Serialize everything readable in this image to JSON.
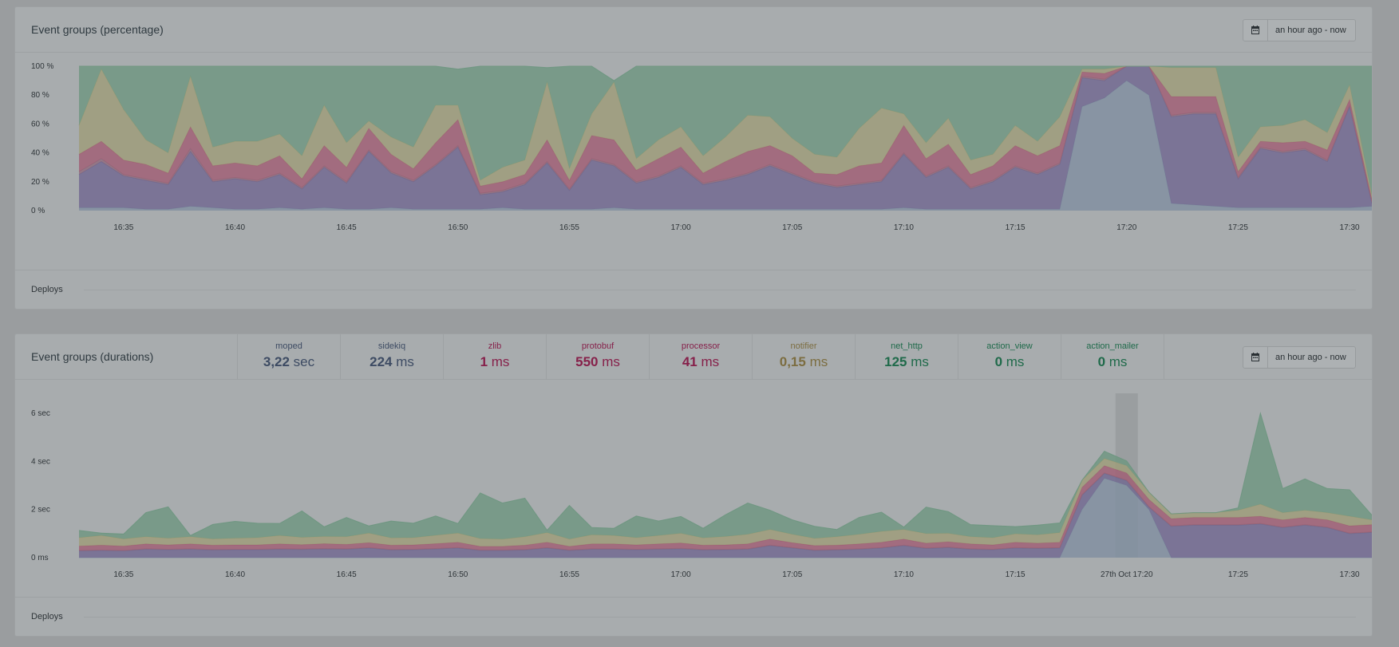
{
  "panels": {
    "percentage": {
      "title": "Event groups (percentage)",
      "date_range": "an hour ago - now",
      "deploys_label": "Deploys"
    },
    "durations": {
      "title": "Event groups (durations)",
      "date_range": "an hour ago - now",
      "deploys_label": "Deploys",
      "hover_label": "27th Oct 17:20"
    }
  },
  "icons": {
    "calendar": "calendar-icon"
  },
  "colors": {
    "moped": "#7f8fa0",
    "sidekiq": "#6f6790",
    "zlib": "#8f6a7c",
    "protobuf": "#a05d73",
    "processor": "#a37080",
    "notifier": "#9e9c78",
    "net_http": "#6d9680",
    "action_view": "#6f9a86",
    "action_mailer": "#5f8d7e"
  },
  "legend": [
    {
      "name": "moped",
      "value": "3,22",
      "unit": "sec",
      "color": "#3d4b63"
    },
    {
      "name": "sidekiq",
      "value": "224",
      "unit": "ms",
      "color": "#3d4b63"
    },
    {
      "name": "zlib",
      "value": "1",
      "unit": "ms",
      "color": "#86204a"
    },
    {
      "name": "protobuf",
      "value": "550",
      "unit": "ms",
      "color": "#86204a"
    },
    {
      "name": "processor",
      "value": "41",
      "unit": "ms",
      "color": "#86204a"
    },
    {
      "name": "notifier",
      "value": "0,15",
      "unit": "ms",
      "color": "#7c6d40"
    },
    {
      "name": "net_http",
      "value": "125",
      "unit": "ms",
      "color": "#1f6a4a"
    },
    {
      "name": "action_view",
      "value": "0",
      "unit": "ms",
      "color": "#1f6a4a"
    },
    {
      "name": "action_mailer",
      "value": "0",
      "unit": "ms",
      "color": "#1f6a4a"
    }
  ],
  "chart_data": [
    {
      "type": "area",
      "title": "Event groups (percentage)",
      "x_start": "16:33",
      "x_step_minutes": 1,
      "xticks": [
        "16:35",
        "16:40",
        "16:45",
        "16:50",
        "16:55",
        "17:00",
        "17:05",
        "17:10",
        "17:15",
        "17:20",
        "17:25",
        "17:30"
      ],
      "yticks": [
        "0 %",
        "20 %",
        "40 %",
        "60 %",
        "80 %",
        "100 %"
      ],
      "ylim": [
        0,
        100
      ],
      "stacked": true,
      "series": [
        {
          "name": "moped",
          "values": [
            2,
            2,
            2,
            1,
            1,
            3,
            2,
            1,
            1,
            2,
            1,
            2,
            1,
            1,
            2,
            1,
            1,
            1,
            1,
            2,
            1,
            1,
            1,
            1,
            2,
            1,
            1,
            1,
            1,
            1,
            1,
            1,
            1,
            1,
            1,
            1,
            1,
            2,
            1,
            1,
            1,
            1,
            1,
            1,
            1,
            72,
            78,
            90,
            80,
            5,
            4,
            3,
            2,
            2,
            2,
            2,
            2,
            2,
            3
          ]
        },
        {
          "name": "sidekiq",
          "values": [
            23,
            32,
            22,
            20,
            17,
            38,
            18,
            21,
            19,
            23,
            14,
            28,
            18,
            40,
            24,
            19,
            30,
            43,
            10,
            11,
            17,
            32,
            13,
            34,
            29,
            18,
            22,
            29,
            17,
            20,
            24,
            30,
            24,
            18,
            15,
            17,
            19,
            37,
            22,
            29,
            14,
            19,
            29,
            24,
            31,
            20,
            12,
            10,
            20,
            60,
            63,
            64,
            20,
            41,
            38,
            40,
            32,
            70,
            2
          ]
        },
        {
          "name": "zlib",
          "values": [
            2,
            2,
            1,
            1,
            1,
            2,
            1,
            1,
            1,
            1,
            1,
            1,
            1,
            1,
            1,
            1,
            1,
            1,
            1,
            1,
            1,
            1,
            1,
            1,
            1,
            1,
            1,
            1,
            1,
            1,
            1,
            1,
            1,
            1,
            1,
            1,
            1,
            1,
            1,
            1,
            1,
            1,
            1,
            1,
            1,
            1,
            1,
            0,
            0,
            1,
            1,
            1,
            1,
            1,
            1,
            1,
            1,
            1,
            1
          ]
        },
        {
          "name": "protobuf",
          "values": [
            12,
            12,
            10,
            10,
            7,
            15,
            10,
            10,
            10,
            12,
            6,
            14,
            10,
            15,
            12,
            8,
            15,
            18,
            5,
            6,
            6,
            15,
            6,
            16,
            17,
            8,
            12,
            13,
            7,
            12,
            15,
            13,
            12,
            6,
            8,
            12,
            12,
            19,
            12,
            15,
            9,
            10,
            14,
            12,
            12,
            3,
            4,
            0,
            0,
            13,
            11,
            11,
            4,
            4,
            6,
            5,
            7,
            4,
            2
          ]
        },
        {
          "name": "notifier",
          "values": [
            20,
            50,
            35,
            17,
            14,
            35,
            13,
            15,
            17,
            15,
            16,
            28,
            17,
            5,
            12,
            15,
            26,
            10,
            4,
            10,
            10,
            40,
            8,
            15,
            40,
            8,
            13,
            14,
            12,
            17,
            25,
            20,
            12,
            13,
            12,
            26,
            38,
            8,
            11,
            18,
            10,
            8,
            14,
            10,
            20,
            2,
            3,
            0,
            0,
            20,
            20,
            20,
            10,
            10,
            12,
            15,
            12,
            10,
            3
          ]
        },
        {
          "name": "net_http",
          "values": [
            41,
            2,
            30,
            51,
            60,
            7,
            56,
            52,
            52,
            47,
            62,
            27,
            53,
            38,
            49,
            56,
            27,
            25,
            79,
            70,
            65,
            10,
            72,
            33,
            1,
            64,
            51,
            42,
            62,
            49,
            34,
            35,
            50,
            61,
            63,
            43,
            29,
            33,
            53,
            36,
            65,
            62,
            41,
            52,
            35,
            2,
            2,
            0,
            0,
            1,
            1,
            1,
            63,
            42,
            41,
            37,
            46,
            13,
            89
          ]
        }
      ]
    },
    {
      "type": "area",
      "title": "Event groups (durations)",
      "x_start": "16:33",
      "x_step_minutes": 1,
      "xticks": [
        "16:35",
        "16:40",
        "16:45",
        "16:50",
        "16:55",
        "17:00",
        "17:05",
        "17:10",
        "17:15",
        "17:20",
        "17:25",
        "17:30"
      ],
      "yticks": [
        "0 ms",
        "2 sec",
        "4 sec",
        "6 sec"
      ],
      "ylim": [
        0,
        6
      ],
      "stacked": true,
      "series": [
        {
          "name": "moped",
          "values": [
            0,
            0,
            0,
            0,
            0,
            0,
            0,
            0,
            0,
            0,
            0,
            0,
            0,
            0,
            0,
            0,
            0,
            0,
            0,
            0,
            0,
            0,
            0,
            0,
            0,
            0,
            0,
            0,
            0,
            0,
            0,
            0,
            0,
            0,
            0,
            0,
            0,
            0,
            0,
            0,
            0,
            0,
            0,
            0,
            0,
            2.0,
            3.3,
            3.0,
            2.0,
            0.0,
            0.0,
            0.0,
            0.0,
            0.0,
            0.0,
            0.0,
            0.0,
            0.0,
            0.0
          ]
        },
        {
          "name": "sidekiq",
          "values": [
            0.28,
            0.3,
            0.28,
            0.35,
            0.33,
            0.35,
            0.32,
            0.33,
            0.33,
            0.35,
            0.34,
            0.36,
            0.35,
            0.4,
            0.32,
            0.33,
            0.36,
            0.4,
            0.3,
            0.3,
            0.32,
            0.4,
            0.3,
            0.35,
            0.35,
            0.33,
            0.35,
            0.37,
            0.32,
            0.33,
            0.35,
            0.5,
            0.4,
            0.3,
            0.32,
            0.35,
            0.4,
            0.5,
            0.38,
            0.42,
            0.35,
            0.33,
            0.4,
            0.38,
            0.4,
            0.6,
            0.2,
            0.2,
            0.1,
            1.3,
            1.35,
            1.35,
            1.35,
            1.4,
            1.25,
            1.35,
            1.25,
            1.0,
            1.05
          ]
        },
        {
          "name": "zlib",
          "values": [
            0.02,
            0.02,
            0.02,
            0.02,
            0.02,
            0.02,
            0.02,
            0.02,
            0.02,
            0.02,
            0.02,
            0.02,
            0.02,
            0.02,
            0.02,
            0.02,
            0.02,
            0.02,
            0.02,
            0.02,
            0.02,
            0.02,
            0.02,
            0.02,
            0.02,
            0.02,
            0.02,
            0.02,
            0.02,
            0.02,
            0.02,
            0.02,
            0.02,
            0.02,
            0.02,
            0.02,
            0.02,
            0.02,
            0.02,
            0.02,
            0.02,
            0.02,
            0.02,
            0.02,
            0.02,
            0.02,
            0.02,
            0.02,
            0.02,
            0.02,
            0.02,
            0.02,
            0.02,
            0.02,
            0.02,
            0.02,
            0.02,
            0.02,
            0.02
          ]
        },
        {
          "name": "protobuf",
          "values": [
            0.18,
            0.2,
            0.18,
            0.2,
            0.18,
            0.2,
            0.18,
            0.18,
            0.18,
            0.2,
            0.18,
            0.2,
            0.18,
            0.2,
            0.18,
            0.18,
            0.2,
            0.22,
            0.15,
            0.15,
            0.18,
            0.22,
            0.15,
            0.2,
            0.2,
            0.18,
            0.2,
            0.22,
            0.18,
            0.18,
            0.2,
            0.25,
            0.2,
            0.18,
            0.18,
            0.2,
            0.22,
            0.25,
            0.2,
            0.22,
            0.2,
            0.18,
            0.22,
            0.2,
            0.22,
            0.3,
            0.3,
            0.3,
            0.3,
            0.3,
            0.3,
            0.3,
            0.3,
            0.3,
            0.3,
            0.3,
            0.3,
            0.3,
            0.3
          ]
        },
        {
          "name": "notifier",
          "values": [
            0.35,
            0.4,
            0.3,
            0.3,
            0.28,
            0.3,
            0.26,
            0.28,
            0.3,
            0.35,
            0.3,
            0.3,
            0.32,
            0.4,
            0.3,
            0.3,
            0.35,
            0.38,
            0.32,
            0.3,
            0.35,
            0.4,
            0.3,
            0.38,
            0.35,
            0.3,
            0.35,
            0.4,
            0.3,
            0.35,
            0.4,
            0.4,
            0.35,
            0.3,
            0.35,
            0.4,
            0.45,
            0.4,
            0.4,
            0.35,
            0.3,
            0.3,
            0.35,
            0.35,
            0.4,
            0.3,
            0.3,
            0.3,
            0.3,
            0.2,
            0.2,
            0.2,
            0.3,
            0.5,
            0.3,
            0.3,
            0.3,
            0.4,
            0.2
          ]
        },
        {
          "name": "net_http",
          "values": [
            0.3,
            0.1,
            0.2,
            1.0,
            1.3,
            0.05,
            0.6,
            0.7,
            0.6,
            0.5,
            1.1,
            0.4,
            0.8,
            0.3,
            0.7,
            0.6,
            0.8,
            0.4,
            1.9,
            1.5,
            1.6,
            0.1,
            1.4,
            0.3,
            0.3,
            0.9,
            0.6,
            0.7,
            0.4,
            0.9,
            1.3,
            0.8,
            0.6,
            0.5,
            0.3,
            0.7,
            0.8,
            0.1,
            1.1,
            0.9,
            0.5,
            0.5,
            0.3,
            0.4,
            0.4,
            0.0,
            0.3,
            0.2,
            0.0,
            0.0,
            0.0,
            0.0,
            0.1,
            4.0,
            1.0,
            1.3,
            1.0,
            1.1,
            0.2
          ]
        }
      ]
    }
  ]
}
